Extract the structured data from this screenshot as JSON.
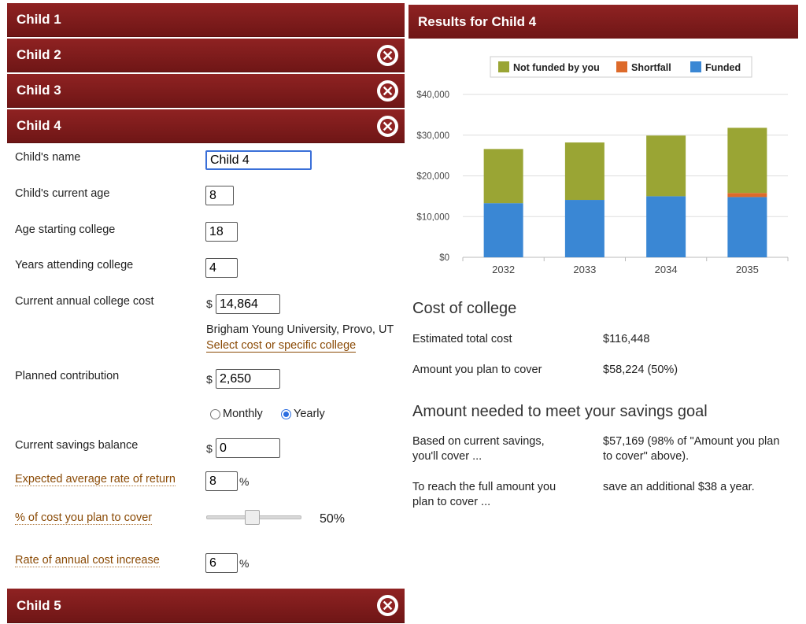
{
  "children_bars": {
    "child1": "Child 1",
    "child2": "Child 2",
    "child3": "Child 3",
    "child4": "Child 4",
    "child5": "Child 5"
  },
  "form": {
    "name_label": "Child's name",
    "name_value": "Child 4",
    "age_label": "Child's current age",
    "age_value": "8",
    "start_label": "Age starting college",
    "start_value": "18",
    "years_label": "Years attending college",
    "years_value": "4",
    "cost_label": "Current annual college cost",
    "currency": "$",
    "cost_value": "14,864",
    "college_name": "Brigham Young University, Provo, UT",
    "select_college_link": "Select cost or specific college",
    "contribution_label": "Planned contribution",
    "contribution_value": "2,650",
    "freq_monthly": "Monthly",
    "freq_yearly": "Yearly",
    "freq_selected": "Yearly",
    "savings_label": "Current savings balance",
    "savings_value": "0",
    "return_label": "Expected average rate of return",
    "return_value": "8",
    "percent_sign": "%",
    "cover_label": "% of cost you plan to cover",
    "cover_value": "50%",
    "cover_fraction": 0.5,
    "increase_label": "Rate of annual cost increase",
    "increase_value": "6"
  },
  "results": {
    "title": "Results for Child 4",
    "cost_heading": "Cost of college",
    "total_label": "Estimated total cost",
    "total_value": "$116,448",
    "cover_label": "Amount you plan to cover",
    "cover_value": "$58,224 (50%)",
    "goal_heading": "Amount needed to meet your savings goal",
    "current_label": "Based on current savings, you'll cover ...",
    "current_value": "$57,169 (98% of \"Amount you plan to cover\" above).",
    "reach_label": "To reach the full amount you plan to cover ...",
    "reach_value": "save an additional $38 a year."
  },
  "chart_data": {
    "type": "bar",
    "stacked": true,
    "categories": [
      "2032",
      "2033",
      "2034",
      "2035"
    ],
    "series": [
      {
        "name": "Funded",
        "color": "#3a87d4",
        "values": [
          13300,
          14100,
          15000,
          14800
        ]
      },
      {
        "name": "Shortfall",
        "color": "#dd6a2a",
        "values": [
          0,
          0,
          0,
          1000
        ]
      },
      {
        "name": "Not funded by you",
        "color": "#9aa534",
        "values": [
          13300,
          14100,
          14900,
          16000
        ]
      }
    ],
    "legend_order": [
      "Not funded by you",
      "Shortfall",
      "Funded"
    ],
    "legend_position": "top",
    "yticks": [
      "$0",
      "$10,000",
      "$20,000",
      "$30,000",
      "$40,000"
    ],
    "ylim": [
      0,
      40000
    ],
    "grid": true
  }
}
